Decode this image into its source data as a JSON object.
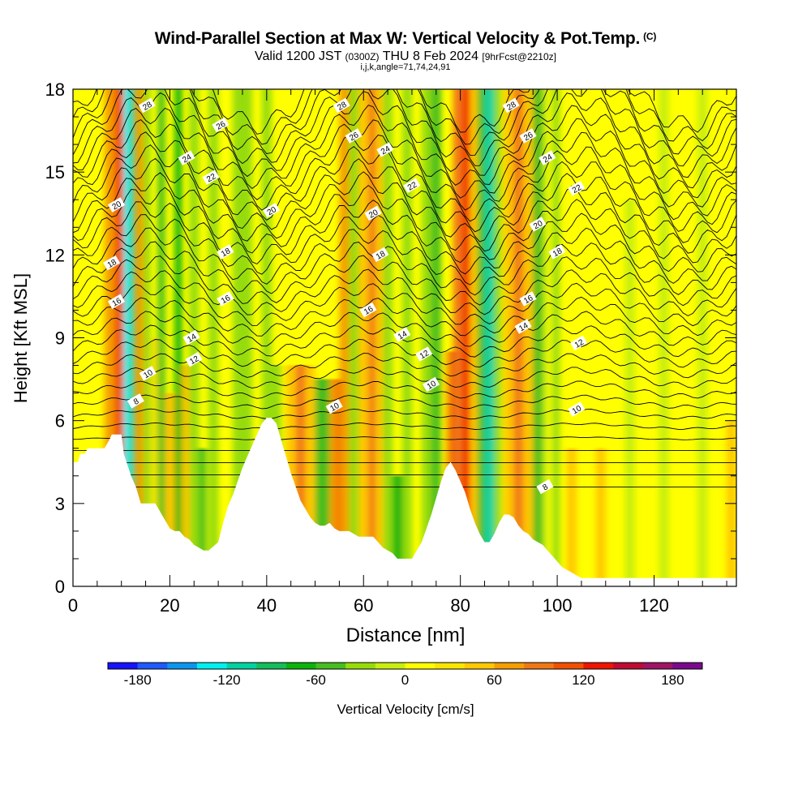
{
  "header": {
    "title": "Wind-Parallel Section at Max W: Vertical Velocity & Pot.Temp.",
    "copyright": "(C)",
    "valid_prefix": "Valid 1200 JST",
    "valid_utc": "(0300Z)",
    "valid_date": "THU 8 Feb 2024",
    "forecast": "[9hrFcst@2210z]",
    "ijk": "i,j,k,angle=71,74,24,91"
  },
  "colors": {
    "ground": "#ffffff",
    "contour": "#000000",
    "scale": [
      "#1414ff",
      "#1e5aff",
      "#0a96f0",
      "#00f0f0",
      "#00d2a0",
      "#14be5a",
      "#0ab40a",
      "#46be1e",
      "#96dc0a",
      "#c8ee10",
      "#ffff00",
      "#f8e600",
      "#ffc800",
      "#f59e00",
      "#f07814",
      "#f05000",
      "#f01400",
      "#c00a32",
      "#a01464",
      "#7a0a8c"
    ]
  },
  "chart_data": {
    "type": "heatmap",
    "xlabel": "Distance [nm]",
    "ylabel": "Height [Kft MSL]",
    "xlim": [
      0,
      137
    ],
    "ylim": [
      0,
      18
    ],
    "xticks": [
      0,
      20,
      40,
      60,
      80,
      100,
      120
    ],
    "yticks": [
      0,
      3,
      6,
      9,
      12,
      15,
      18
    ],
    "colorbar": {
      "label": "Vertical Velocity [cm/s]",
      "range": [
        -200,
        200
      ],
      "ticks": [
        -180,
        -120,
        -60,
        0,
        60,
        120,
        180
      ],
      "step": 20
    },
    "terrain": {
      "x": [
        0,
        1,
        1.5,
        2.5,
        3,
        6.5,
        7.5,
        8,
        10,
        10.5,
        12,
        13,
        14,
        17,
        18,
        19,
        20,
        21,
        22,
        23,
        24,
        25,
        26,
        27,
        28,
        30,
        31,
        32,
        33,
        34,
        35,
        36,
        37,
        38,
        39,
        40,
        41,
        42,
        43,
        44,
        45,
        46,
        47,
        48,
        49,
        50,
        51,
        52,
        53,
        54,
        55,
        56,
        57,
        58,
        59,
        60,
        61,
        62,
        63,
        64,
        65,
        66,
        67,
        68,
        69,
        70,
        71,
        72,
        73,
        74,
        75,
        76,
        77,
        78,
        79,
        80,
        81,
        82,
        83,
        84,
        85,
        86,
        87,
        88,
        89,
        90,
        91,
        92,
        93,
        94,
        95,
        96,
        97,
        98,
        99,
        100,
        101,
        102,
        103,
        104,
        105,
        137
      ],
      "y": [
        4.5,
        4.5,
        4.8,
        4.8,
        5.0,
        5.0,
        5.3,
        5.5,
        5.5,
        4.8,
        4.0,
        3.6,
        3.0,
        3.0,
        2.7,
        2.4,
        2.1,
        2.0,
        2.0,
        1.8,
        1.7,
        1.5,
        1.4,
        1.3,
        1.3,
        1.6,
        2.3,
        2.9,
        3.3,
        3.8,
        4.3,
        4.7,
        5.1,
        5.5,
        5.9,
        6.1,
        6.1,
        5.9,
        5.3,
        4.7,
        4.1,
        3.6,
        3.1,
        2.8,
        2.5,
        2.3,
        2.2,
        2.2,
        2.3,
        2.1,
        2.0,
        2.0,
        2.0,
        1.9,
        1.8,
        1.8,
        1.8,
        1.8,
        1.6,
        1.4,
        1.3,
        1.2,
        1.0,
        1.0,
        1.0,
        1.0,
        1.3,
        1.6,
        2.1,
        2.6,
        3.2,
        3.8,
        4.3,
        4.5,
        4.2,
        3.8,
        3.4,
        2.8,
        2.3,
        1.9,
        1.6,
        1.6,
        1.9,
        2.3,
        2.6,
        2.6,
        2.5,
        2.2,
        2.0,
        1.9,
        1.7,
        1.6,
        1.5,
        1.3,
        1.1,
        0.9,
        0.7,
        0.6,
        0.5,
        0.4,
        0.3,
        0.3
      ],
      "color": "#ffffff"
    },
    "vertical_velocity_bands": [
      {
        "x0": 6.5,
        "x1": 8.5,
        "w": 60,
        "top": 18
      },
      {
        "x0": 8.5,
        "x1": 10.5,
        "w": 100,
        "top": 18
      },
      {
        "x0": 10.5,
        "x1": 12,
        "w": -130,
        "top": 18
      },
      {
        "x0": 12,
        "x1": 13,
        "w": -60,
        "top": 18
      },
      {
        "x0": 13,
        "x1": 14.5,
        "w": 60,
        "top": 18
      },
      {
        "x0": 14.5,
        "x1": 16,
        "w": -40,
        "top": 18
      },
      {
        "x0": 16,
        "x1": 17.5,
        "w": 20,
        "top": 9
      },
      {
        "x0": 17.5,
        "x1": 19,
        "w": -60,
        "top": 18
      },
      {
        "x0": 19,
        "x1": 21,
        "w": 40,
        "top": 7
      },
      {
        "x0": 21,
        "x1": 22.5,
        "w": -70,
        "top": 18
      },
      {
        "x0": 22.5,
        "x1": 24,
        "w": 40,
        "top": 8
      },
      {
        "x0": 24,
        "x1": 26,
        "w": -40,
        "top": 18
      },
      {
        "x0": 26,
        "x1": 27.5,
        "w": -50,
        "top": 5
      },
      {
        "x0": 28,
        "x1": 30,
        "w": -30,
        "top": 18
      },
      {
        "x0": 33,
        "x1": 35,
        "w": -40,
        "top": 18
      },
      {
        "x0": 35,
        "x1": 37,
        "w": -30,
        "top": 18
      },
      {
        "x0": 39,
        "x1": 41,
        "w": -40,
        "top": 18
      },
      {
        "x0": 41,
        "x1": 43,
        "w": -30,
        "top": 8
      },
      {
        "x0": 44,
        "x1": 46,
        "w": 40,
        "top": 8
      },
      {
        "x0": 46,
        "x1": 48,
        "w": 80,
        "top": 8
      },
      {
        "x0": 48,
        "x1": 50,
        "w": 40,
        "top": 8
      },
      {
        "x0": 50,
        "x1": 53,
        "w": -60,
        "top": 7.5
      },
      {
        "x0": 53,
        "x1": 54.5,
        "w": 60,
        "top": 7.5
      },
      {
        "x0": 54.5,
        "x1": 56,
        "w": 120,
        "top": 7.5
      },
      {
        "x0": 56,
        "x1": 57,
        "w": 60,
        "top": 7.5
      },
      {
        "x0": 55,
        "x1": 57,
        "w": 60,
        "top": 18
      },
      {
        "x0": 57,
        "x1": 59,
        "w": -40,
        "top": 18
      },
      {
        "x0": 59,
        "x1": 61,
        "w": 40,
        "top": 18
      },
      {
        "x0": 61,
        "x1": 62.5,
        "w": 80,
        "top": 18
      },
      {
        "x0": 62.5,
        "x1": 64,
        "w": 40,
        "top": 18
      },
      {
        "x0": 64,
        "x1": 66,
        "w": -30,
        "top": 18
      },
      {
        "x0": 66,
        "x1": 68,
        "w": -80,
        "top": 4
      },
      {
        "x0": 68,
        "x1": 70,
        "w": -30,
        "top": 18
      },
      {
        "x0": 72,
        "x1": 74,
        "w": -30,
        "top": 18
      },
      {
        "x0": 74,
        "x1": 76,
        "w": -60,
        "top": 18
      },
      {
        "x0": 77,
        "x1": 78,
        "w": 60,
        "top": 8.5
      },
      {
        "x0": 78,
        "x1": 80,
        "w": 130,
        "top": 8.5
      },
      {
        "x0": 80,
        "x1": 81.5,
        "w": 60,
        "top": 8.5
      },
      {
        "x0": 78.5,
        "x1": 80.5,
        "w": 80,
        "top": 18
      },
      {
        "x0": 80.5,
        "x1": 82,
        "w": 120,
        "top": 18
      },
      {
        "x0": 82,
        "x1": 83.5,
        "w": 40,
        "top": 18
      },
      {
        "x0": 83.5,
        "x1": 85,
        "w": -60,
        "top": 18
      },
      {
        "x0": 85,
        "x1": 87,
        "w": -120,
        "top": 18
      },
      {
        "x0": 87,
        "x1": 88.5,
        "w": -40,
        "top": 18
      },
      {
        "x0": 89,
        "x1": 91,
        "w": 40,
        "top": 18
      },
      {
        "x0": 91,
        "x1": 93,
        "w": 80,
        "top": 18
      },
      {
        "x0": 93,
        "x1": 95,
        "w": 40,
        "top": 18
      },
      {
        "x0": 95,
        "x1": 97,
        "w": -50,
        "top": 18
      },
      {
        "x0": 97,
        "x1": 98,
        "w": -20,
        "top": 18
      },
      {
        "x0": 99,
        "x1": 100.5,
        "w": -30,
        "top": 18
      },
      {
        "x0": 102,
        "x1": 104,
        "w": 40,
        "top": 5
      },
      {
        "x0": 108,
        "x1": 110,
        "w": 40,
        "top": 5
      },
      {
        "x0": 114,
        "x1": 116,
        "w": -20,
        "top": 14
      },
      {
        "x0": 121,
        "x1": 123,
        "w": -20,
        "top": 18
      },
      {
        "x0": 129,
        "x1": 131,
        "w": -20,
        "top": 18
      },
      {
        "x0": 135,
        "x1": 137,
        "w": 40,
        "top": 6
      }
    ],
    "theta_labels": [
      {
        "x": 15.3,
        "y": 17.4,
        "text": "28"
      },
      {
        "x": 30.5,
        "y": 16.7,
        "text": "26"
      },
      {
        "x": 23.5,
        "y": 15.5,
        "text": "24"
      },
      {
        "x": 28.5,
        "y": 14.8,
        "text": "22"
      },
      {
        "x": 9,
        "y": 13.8,
        "text": "20"
      },
      {
        "x": 41,
        "y": 13.6,
        "text": "20"
      },
      {
        "x": 31.5,
        "y": 12.1,
        "text": "18"
      },
      {
        "x": 8,
        "y": 11.7,
        "text": "18"
      },
      {
        "x": 9,
        "y": 10.3,
        "text": "16"
      },
      {
        "x": 31.5,
        "y": 10.4,
        "text": "16"
      },
      {
        "x": 24.5,
        "y": 9.0,
        "text": "14"
      },
      {
        "x": 25,
        "y": 8.2,
        "text": "12"
      },
      {
        "x": 15.5,
        "y": 7.7,
        "text": "10"
      },
      {
        "x": 13,
        "y": 6.7,
        "text": "8"
      },
      {
        "x": 55.5,
        "y": 17.4,
        "text": "28"
      },
      {
        "x": 58,
        "y": 16.3,
        "text": "26"
      },
      {
        "x": 64.5,
        "y": 15.8,
        "text": "24"
      },
      {
        "x": 70,
        "y": 14.5,
        "text": "22"
      },
      {
        "x": 62,
        "y": 13.5,
        "text": "20"
      },
      {
        "x": 63.5,
        "y": 12.0,
        "text": "18"
      },
      {
        "x": 61,
        "y": 10.0,
        "text": "16"
      },
      {
        "x": 68,
        "y": 9.1,
        "text": "14"
      },
      {
        "x": 72.5,
        "y": 8.4,
        "text": "12"
      },
      {
        "x": 74,
        "y": 7.3,
        "text": "10"
      },
      {
        "x": 54,
        "y": 6.5,
        "text": "10"
      },
      {
        "x": 90.5,
        "y": 17.4,
        "text": "28"
      },
      {
        "x": 94,
        "y": 16.3,
        "text": "26"
      },
      {
        "x": 98,
        "y": 15.5,
        "text": "24"
      },
      {
        "x": 104,
        "y": 14.4,
        "text": "22"
      },
      {
        "x": 96,
        "y": 13.1,
        "text": "20"
      },
      {
        "x": 100,
        "y": 12.1,
        "text": "18"
      },
      {
        "x": 94,
        "y": 10.4,
        "text": "16"
      },
      {
        "x": 93,
        "y": 9.4,
        "text": "14"
      },
      {
        "x": 104.5,
        "y": 8.8,
        "text": "12"
      },
      {
        "x": 104,
        "y": 6.4,
        "text": "10"
      },
      {
        "x": 97.5,
        "y": 3.6,
        "text": "8"
      }
    ]
  }
}
